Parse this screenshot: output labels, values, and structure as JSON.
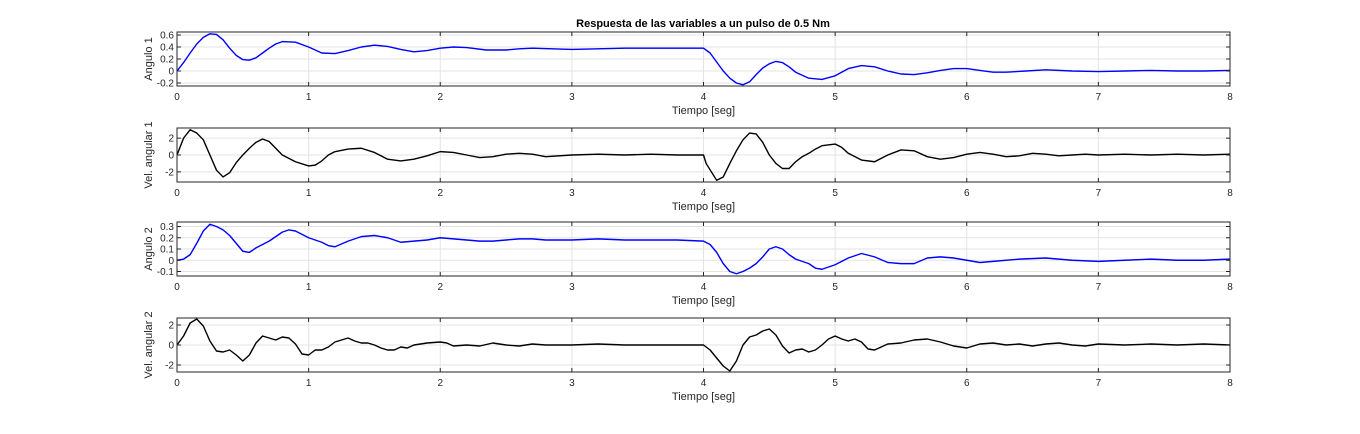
{
  "figure": {
    "title": "Respuesta de las variables a un pulso de 0.5 Nm",
    "background": "#ffffff"
  },
  "chart_data": [
    {
      "type": "line",
      "title": "Respuesta de las variables a un pulso de 0.5 Nm",
      "xlabel": "Tiempo [seg]",
      "ylabel": "Angulo 1",
      "xlim": [
        0,
        8
      ],
      "ylim": [
        -0.25,
        0.65
      ],
      "xticks": [
        0,
        1,
        2,
        3,
        4,
        5,
        6,
        7,
        8
      ],
      "yticks": [
        -0.2,
        0,
        0.2,
        0.4,
        0.6
      ],
      "grid": true,
      "series": [
        {
          "color": "#0000ff",
          "x": [
            0,
            0.05,
            0.1,
            0.15,
            0.2,
            0.25,
            0.3,
            0.35,
            0.4,
            0.45,
            0.5,
            0.55,
            0.6,
            0.65,
            0.7,
            0.75,
            0.8,
            0.9,
            1.0,
            1.1,
            1.2,
            1.3,
            1.4,
            1.5,
            1.6,
            1.7,
            1.8,
            1.9,
            2.0,
            2.1,
            2.2,
            2.35,
            2.5,
            2.6,
            2.7,
            2.85,
            3.0,
            3.2,
            3.4,
            3.6,
            3.8,
            4.0,
            4.05,
            4.1,
            4.15,
            4.2,
            4.25,
            4.3,
            4.35,
            4.4,
            4.45,
            4.5,
            4.55,
            4.6,
            4.65,
            4.7,
            4.8,
            4.9,
            5.0,
            5.1,
            5.2,
            5.3,
            5.4,
            5.5,
            5.6,
            5.7,
            5.8,
            5.9,
            6.0,
            6.1,
            6.2,
            6.3,
            6.45,
            6.6,
            6.8,
            7.0,
            7.2,
            7.4,
            7.6,
            7.8,
            8.0
          ],
          "y": [
            0.0,
            0.14,
            0.3,
            0.45,
            0.56,
            0.62,
            0.61,
            0.52,
            0.38,
            0.26,
            0.19,
            0.18,
            0.22,
            0.3,
            0.38,
            0.45,
            0.49,
            0.48,
            0.4,
            0.3,
            0.29,
            0.34,
            0.4,
            0.43,
            0.41,
            0.36,
            0.32,
            0.34,
            0.38,
            0.4,
            0.39,
            0.35,
            0.35,
            0.37,
            0.38,
            0.37,
            0.36,
            0.37,
            0.38,
            0.38,
            0.38,
            0.38,
            0.3,
            0.15,
            0.0,
            -0.12,
            -0.2,
            -0.23,
            -0.18,
            -0.06,
            0.05,
            0.12,
            0.16,
            0.14,
            0.07,
            -0.02,
            -0.12,
            -0.14,
            -0.08,
            0.04,
            0.09,
            0.07,
            0.0,
            -0.05,
            -0.06,
            -0.03,
            0.01,
            0.04,
            0.04,
            0.01,
            -0.02,
            -0.02,
            0.0,
            0.02,
            0.0,
            -0.01,
            0.0,
            0.01,
            0.0,
            0.0,
            0.01
          ]
        }
      ]
    },
    {
      "type": "line",
      "xlabel": "Tiempo [seg]",
      "ylabel": "Vel. angular 1",
      "xlim": [
        0,
        8
      ],
      "ylim": [
        -3.2,
        3.2
      ],
      "xticks": [
        0,
        1,
        2,
        3,
        4,
        5,
        6,
        7,
        8
      ],
      "yticks": [
        -2,
        0,
        2
      ],
      "grid": true,
      "series": [
        {
          "color": "#000000",
          "x": [
            0,
            0.05,
            0.1,
            0.15,
            0.2,
            0.25,
            0.3,
            0.35,
            0.4,
            0.45,
            0.5,
            0.55,
            0.6,
            0.65,
            0.7,
            0.75,
            0.8,
            0.85,
            0.9,
            1.0,
            1.05,
            1.1,
            1.15,
            1.2,
            1.3,
            1.4,
            1.5,
            1.6,
            1.7,
            1.8,
            1.9,
            2.0,
            2.1,
            2.2,
            2.3,
            2.4,
            2.5,
            2.6,
            2.7,
            2.8,
            3.0,
            3.2,
            3.4,
            3.6,
            3.8,
            4.0,
            4.02,
            4.1,
            4.15,
            4.2,
            4.25,
            4.3,
            4.35,
            4.4,
            4.45,
            4.5,
            4.55,
            4.6,
            4.65,
            4.7,
            4.75,
            4.8,
            4.85,
            4.9,
            5.0,
            5.05,
            5.1,
            5.2,
            5.3,
            5.4,
            5.5,
            5.6,
            5.7,
            5.8,
            5.9,
            6.0,
            6.1,
            6.2,
            6.3,
            6.4,
            6.5,
            6.6,
            6.7,
            6.8,
            6.9,
            7.0,
            7.2,
            7.4,
            7.6,
            7.8,
            8.0
          ],
          "y": [
            0.0,
            2.0,
            3.0,
            2.6,
            1.8,
            0.0,
            -1.8,
            -2.6,
            -2.1,
            -0.9,
            0.0,
            0.8,
            1.5,
            1.9,
            1.6,
            0.8,
            0.0,
            -0.4,
            -0.8,
            -1.3,
            -1.2,
            -0.7,
            0.0,
            0.4,
            0.7,
            0.8,
            0.3,
            -0.5,
            -0.7,
            -0.5,
            -0.1,
            0.4,
            0.3,
            0.0,
            -0.3,
            -0.2,
            0.1,
            0.2,
            0.1,
            -0.2,
            0.0,
            0.1,
            0.0,
            0.1,
            0.0,
            0.0,
            -1.0,
            -3.0,
            -2.6,
            -1.0,
            0.5,
            1.8,
            2.6,
            2.5,
            1.5,
            0.0,
            -1.0,
            -1.6,
            -1.6,
            -0.8,
            -0.2,
            0.2,
            0.7,
            1.1,
            1.3,
            0.9,
            0.2,
            -0.6,
            -0.8,
            0.0,
            0.6,
            0.5,
            -0.2,
            -0.5,
            -0.3,
            0.1,
            0.3,
            0.1,
            -0.2,
            -0.1,
            0.2,
            0.1,
            -0.1,
            0.0,
            0.1,
            0.0,
            0.1,
            0.0,
            0.1,
            0.0,
            0.1
          ]
        }
      ]
    },
    {
      "type": "line",
      "xlabel": "Tiempo [seg]",
      "ylabel": "Angulo 2",
      "xlim": [
        0,
        8
      ],
      "ylim": [
        -0.14,
        0.34
      ],
      "xticks": [
        0,
        1,
        2,
        3,
        4,
        5,
        6,
        7,
        8
      ],
      "yticks": [
        -0.1,
        0,
        0.1,
        0.2,
        0.3
      ],
      "grid": true,
      "series": [
        {
          "color": "#0000ff",
          "x": [
            0,
            0.05,
            0.1,
            0.15,
            0.2,
            0.25,
            0.3,
            0.35,
            0.4,
            0.45,
            0.5,
            0.55,
            0.6,
            0.65,
            0.7,
            0.75,
            0.8,
            0.85,
            0.9,
            1.0,
            1.1,
            1.15,
            1.2,
            1.3,
            1.4,
            1.5,
            1.6,
            1.7,
            1.8,
            1.9,
            2.0,
            2.1,
            2.2,
            2.3,
            2.4,
            2.5,
            2.6,
            2.7,
            2.8,
            3.0,
            3.2,
            3.4,
            3.6,
            3.8,
            4.0,
            4.05,
            4.1,
            4.15,
            4.2,
            4.25,
            4.3,
            4.35,
            4.4,
            4.45,
            4.5,
            4.55,
            4.6,
            4.65,
            4.7,
            4.75,
            4.8,
            4.85,
            4.9,
            5.0,
            5.1,
            5.2,
            5.3,
            5.4,
            5.5,
            5.6,
            5.7,
            5.8,
            5.9,
            6.0,
            6.1,
            6.2,
            6.4,
            6.6,
            6.8,
            7.0,
            7.2,
            7.4,
            7.6,
            7.8,
            8.0
          ],
          "y": [
            0.0,
            0.01,
            0.05,
            0.15,
            0.26,
            0.32,
            0.3,
            0.27,
            0.22,
            0.15,
            0.08,
            0.07,
            0.11,
            0.14,
            0.17,
            0.21,
            0.25,
            0.27,
            0.26,
            0.2,
            0.16,
            0.13,
            0.12,
            0.17,
            0.21,
            0.22,
            0.2,
            0.16,
            0.17,
            0.18,
            0.2,
            0.19,
            0.18,
            0.17,
            0.17,
            0.18,
            0.19,
            0.19,
            0.18,
            0.18,
            0.19,
            0.18,
            0.18,
            0.18,
            0.17,
            0.14,
            0.07,
            -0.03,
            -0.1,
            -0.12,
            -0.1,
            -0.07,
            -0.03,
            0.03,
            0.1,
            0.12,
            0.1,
            0.05,
            0.01,
            -0.01,
            -0.03,
            -0.07,
            -0.08,
            -0.04,
            0.02,
            0.06,
            0.03,
            -0.02,
            -0.03,
            -0.03,
            0.02,
            0.03,
            0.02,
            0.0,
            -0.02,
            -0.01,
            0.01,
            0.02,
            0.0,
            -0.01,
            0.0,
            0.01,
            0.0,
            0.0,
            0.01
          ]
        }
      ]
    },
    {
      "type": "line",
      "xlabel": "Tiempo [seg]",
      "ylabel": "Vel. angular 2",
      "xlim": [
        0,
        8
      ],
      "ylim": [
        -2.7,
        2.7
      ],
      "xticks": [
        0,
        1,
        2,
        3,
        4,
        5,
        6,
        7,
        8
      ],
      "yticks": [
        -2,
        0,
        2
      ],
      "grid": true,
      "series": [
        {
          "color": "#000000",
          "x": [
            0,
            0.05,
            0.1,
            0.15,
            0.2,
            0.25,
            0.3,
            0.35,
            0.4,
            0.45,
            0.5,
            0.55,
            0.6,
            0.65,
            0.7,
            0.75,
            0.8,
            0.85,
            0.9,
            0.95,
            1.0,
            1.05,
            1.1,
            1.15,
            1.2,
            1.25,
            1.3,
            1.35,
            1.4,
            1.45,
            1.5,
            1.55,
            1.6,
            1.65,
            1.7,
            1.75,
            1.8,
            1.9,
            2.0,
            2.05,
            2.1,
            2.2,
            2.3,
            2.4,
            2.5,
            2.6,
            2.7,
            2.8,
            3.0,
            3.2,
            3.4,
            3.6,
            3.8,
            4.0,
            4.05,
            4.1,
            4.15,
            4.2,
            4.25,
            4.3,
            4.35,
            4.4,
            4.45,
            4.5,
            4.55,
            4.6,
            4.65,
            4.7,
            4.75,
            4.8,
            4.85,
            4.9,
            4.95,
            5.0,
            5.05,
            5.1,
            5.15,
            5.2,
            5.25,
            5.3,
            5.35,
            5.4,
            5.5,
            5.6,
            5.7,
            5.8,
            5.9,
            6.0,
            6.1,
            6.2,
            6.3,
            6.4,
            6.5,
            6.6,
            6.7,
            6.8,
            6.9,
            7.0,
            7.2,
            7.4,
            7.6,
            7.8,
            8.0
          ],
          "y": [
            0.0,
            0.9,
            2.2,
            2.6,
            1.9,
            0.4,
            -0.6,
            -0.7,
            -0.5,
            -1.0,
            -1.6,
            -1.0,
            0.2,
            0.9,
            0.7,
            0.5,
            0.8,
            0.7,
            0.1,
            -0.9,
            -1.0,
            -0.5,
            -0.5,
            -0.2,
            0.3,
            0.5,
            0.7,
            0.4,
            0.2,
            0.2,
            0.0,
            -0.3,
            -0.5,
            -0.5,
            -0.2,
            -0.3,
            0.0,
            0.2,
            0.3,
            0.2,
            -0.1,
            0.0,
            -0.1,
            0.2,
            0.0,
            -0.1,
            0.1,
            0.0,
            0.0,
            0.1,
            0.0,
            0.0,
            0.0,
            0.0,
            -0.5,
            -1.3,
            -2.1,
            -2.6,
            -1.6,
            0.0,
            0.8,
            1.0,
            1.4,
            1.6,
            1.0,
            -0.1,
            -0.8,
            -0.5,
            -0.4,
            -0.7,
            -0.5,
            0.0,
            0.6,
            0.9,
            0.6,
            0.4,
            0.6,
            0.3,
            -0.4,
            -0.5,
            -0.2,
            0.1,
            0.2,
            0.5,
            0.6,
            0.3,
            -0.1,
            -0.3,
            0.1,
            0.2,
            0.0,
            0.1,
            -0.1,
            0.1,
            0.2,
            0.0,
            -0.1,
            0.1,
            0.0,
            0.1,
            0.0,
            0.1,
            0.0
          ]
        }
      ]
    }
  ]
}
